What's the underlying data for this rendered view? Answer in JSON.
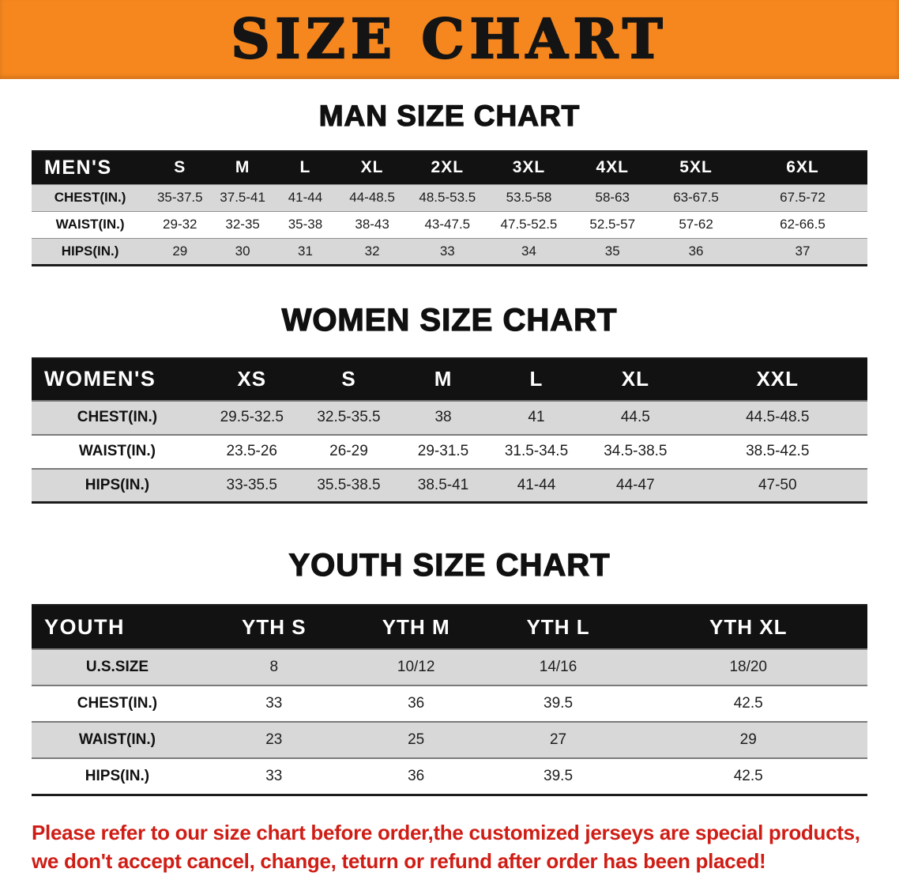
{
  "banner": {
    "title": "SIZE CHART"
  },
  "colors": {
    "banner_bg": "#f6871f",
    "table_header_bg": "#121212",
    "row_shaded": "#d8d8d8",
    "footer_red": "#cf1d15"
  },
  "sections": [
    {
      "id": "men",
      "heading": "MAN SIZE CHART",
      "table": {
        "label_header": "MEN'S",
        "size_headers": [
          "S",
          "M",
          "L",
          "XL",
          "2XL",
          "3XL",
          "4XL",
          "5XL",
          "6XL"
        ],
        "col_widths": [
          "14%",
          "7.5%",
          "7.5%",
          "7.5%",
          "8.5%",
          "9.5%",
          "10%",
          "10%",
          "10%",
          "15.5%"
        ],
        "rows": [
          {
            "label": "CHEST(IN.)",
            "shaded": true,
            "values": [
              "35-37.5",
              "37.5-41",
              "41-44",
              "44-48.5",
              "48.5-53.5",
              "53.5-58",
              "58-63",
              "63-67.5",
              "67.5-72"
            ]
          },
          {
            "label": "WAIST(IN.)",
            "shaded": false,
            "values": [
              "29-32",
              "32-35",
              "35-38",
              "38-43",
              "43-47.5",
              "47.5-52.5",
              "52.5-57",
              "57-62",
              "62-66.5"
            ]
          },
          {
            "label": "HIPS(IN.)",
            "shaded": true,
            "values": [
              "29",
              "30",
              "31",
              "32",
              "33",
              "34",
              "35",
              "36",
              "37"
            ]
          }
        ]
      }
    },
    {
      "id": "women",
      "heading": "WOMEN SIZE CHART",
      "table": {
        "label_header": "WOMEN'S",
        "size_headers": [
          "XS",
          "S",
          "M",
          "L",
          "XL",
          "XXL"
        ],
        "col_widths": [
          "20.5%",
          "11.7%",
          "11.5%",
          "11.1%",
          "11.2%",
          "12.5%",
          "21.5%"
        ],
        "rows": [
          {
            "label": "CHEST(IN.)",
            "shaded": true,
            "values": [
              "29.5-32.5",
              "32.5-35.5",
              "38",
              "41",
              "44.5",
              "44.5-48.5"
            ]
          },
          {
            "label": "WAIST(IN.)",
            "shaded": false,
            "values": [
              "23.5-26",
              "26-29",
              "29-31.5",
              "31.5-34.5",
              "34.5-38.5",
              "38.5-42.5"
            ]
          },
          {
            "label": "HIPS(IN.)",
            "shaded": true,
            "values": [
              "33-35.5",
              "35.5-38.5",
              "38.5-41",
              "41-44",
              "44-47",
              "47-50"
            ]
          }
        ]
      }
    },
    {
      "id": "youth",
      "heading": "YOUTH SIZE CHART",
      "table": {
        "label_header": "YOUTH",
        "size_headers": [
          "YTH S",
          "YTH M",
          "YTH L",
          "YTH XL"
        ],
        "col_widths": [
          "20.5%",
          "17%",
          "17%",
          "17%",
          "28.5%"
        ],
        "rows": [
          {
            "label": "U.S.SIZE",
            "shaded": true,
            "values": [
              "8",
              "10/12",
              "14/16",
              "18/20"
            ]
          },
          {
            "label": "CHEST(IN.)",
            "shaded": false,
            "values": [
              "33",
              "36",
              "39.5",
              "42.5"
            ]
          },
          {
            "label": "WAIST(IN.)",
            "shaded": true,
            "values": [
              "23",
              "25",
              "27",
              "29"
            ]
          },
          {
            "label": "HIPS(IN.)",
            "shaded": false,
            "values": [
              "33",
              "36",
              "39.5",
              "42.5"
            ]
          }
        ]
      }
    }
  ],
  "footer": {
    "line1": "Please refer to our size chart before order,the customized jerseys are special products,",
    "line2": "we don't accept cancel, change, teturn or refund after order has been placed!"
  }
}
